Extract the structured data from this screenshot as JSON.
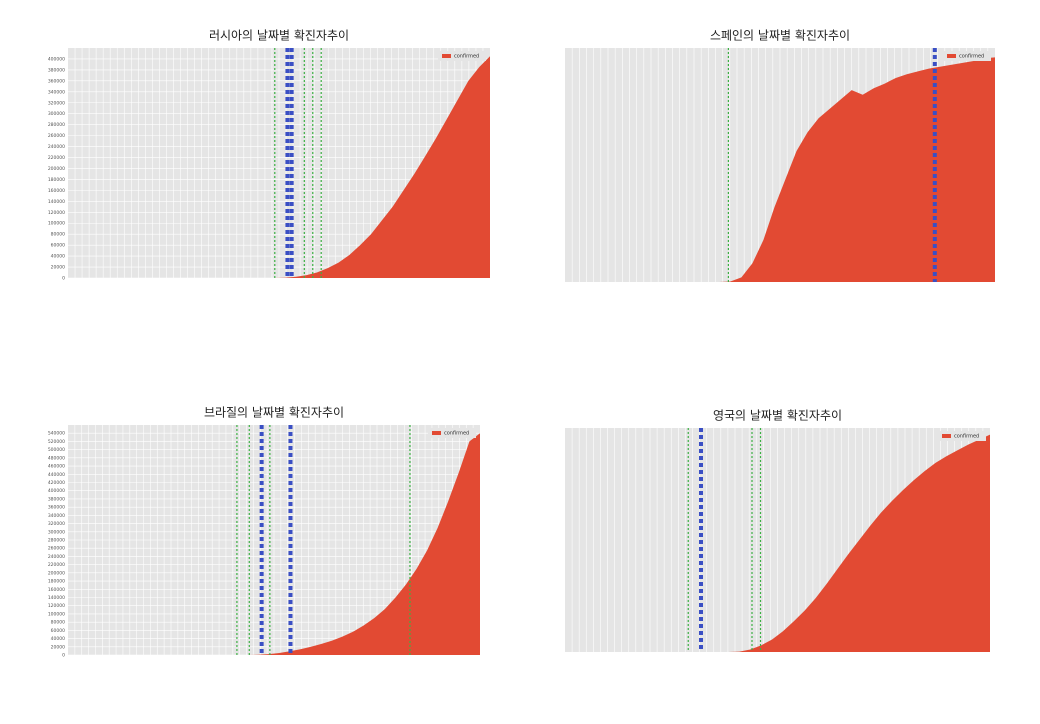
{
  "chart_data": [
    {
      "type": "area",
      "title": "러시아의 날짜별 확진자추이",
      "legend": "upper right",
      "grid": true,
      "series": [
        {
          "name": "confirmed",
          "color": "#e24a33",
          "values": [
            0,
            0,
            0,
            0,
            0,
            0,
            0,
            0,
            0,
            0,
            0,
            0,
            0,
            0,
            0,
            0,
            0,
            0,
            0,
            0,
            500,
            2000,
            5000,
            10000,
            18000,
            28000,
            42000,
            60000,
            80000,
            105000,
            130000,
            160000,
            190000,
            222000,
            255000,
            290000,
            325000,
            360000,
            385000,
            405000
          ]
        }
      ],
      "ylim": [
        0,
        420000
      ],
      "yticks": [
        0,
        20000,
        40000,
        60000,
        80000,
        100000,
        120000,
        140000,
        160000,
        180000,
        200000,
        220000,
        240000,
        260000,
        280000,
        300000,
        320000,
        340000,
        360000,
        380000,
        400000
      ]
    },
    {
      "type": "area",
      "title": "스페인의 날짜별 확진자추이",
      "legend": "upper right",
      "grid": true,
      "series": [
        {
          "name": "confirmed",
          "color": "#e24a33",
          "values": [
            0,
            0,
            0,
            0,
            0,
            0,
            0,
            0,
            0,
            0,
            0,
            0,
            0,
            0,
            0,
            500,
            5000,
            20000,
            45000,
            80000,
            110000,
            140000,
            160000,
            175000,
            185000,
            195000,
            205000,
            200000,
            207000,
            212000,
            218000,
            222000,
            225000,
            228000,
            230000,
            232000,
            234000,
            236000,
            239000,
            240000
          ]
        }
      ],
      "ylim": [
        0,
        250000
      ]
    },
    {
      "type": "area",
      "title": "브라질의 날짜별 확진자추이",
      "legend": "upper right",
      "grid": true,
      "series": [
        {
          "name": "confirmed",
          "color": "#e24a33",
          "values": [
            0,
            0,
            0,
            0,
            0,
            0,
            0,
            0,
            0,
            0,
            0,
            0,
            0,
            0,
            0,
            0,
            0,
            0,
            500,
            2000,
            5000,
            9000,
            14000,
            20000,
            27000,
            35000,
            45000,
            57000,
            72000,
            90000,
            112000,
            140000,
            172000,
            210000,
            255000,
            310000,
            375000,
            445000,
            520000,
            540000
          ]
        }
      ],
      "ylim": [
        0,
        560000
      ],
      "yticks": [
        0,
        20000,
        40000,
        60000,
        80000,
        100000,
        120000,
        140000,
        160000,
        180000,
        200000,
        220000,
        240000,
        260000,
        280000,
        300000,
        320000,
        340000,
        360000,
        380000,
        400000,
        420000,
        440000,
        460000,
        480000,
        500000,
        520000,
        540000
      ]
    },
    {
      "type": "area",
      "title": "영국의 날짜별 확진자추이",
      "legend": "upper right",
      "grid": true,
      "series": [
        {
          "name": "confirmed",
          "color": "#e24a33",
          "values": [
            0,
            0,
            0,
            0,
            0,
            0,
            0,
            0,
            0,
            0,
            0,
            0,
            0,
            0,
            0,
            0,
            500,
            3000,
            8000,
            15000,
            25000,
            37000,
            50000,
            65000,
            82000,
            100000,
            118000,
            135000,
            152000,
            168000,
            182000,
            195000,
            207000,
            218000,
            228000,
            236000,
            243000,
            250000,
            256000,
            262000
          ]
        }
      ],
      "ylim": [
        0,
        270000
      ]
    }
  ]
}
